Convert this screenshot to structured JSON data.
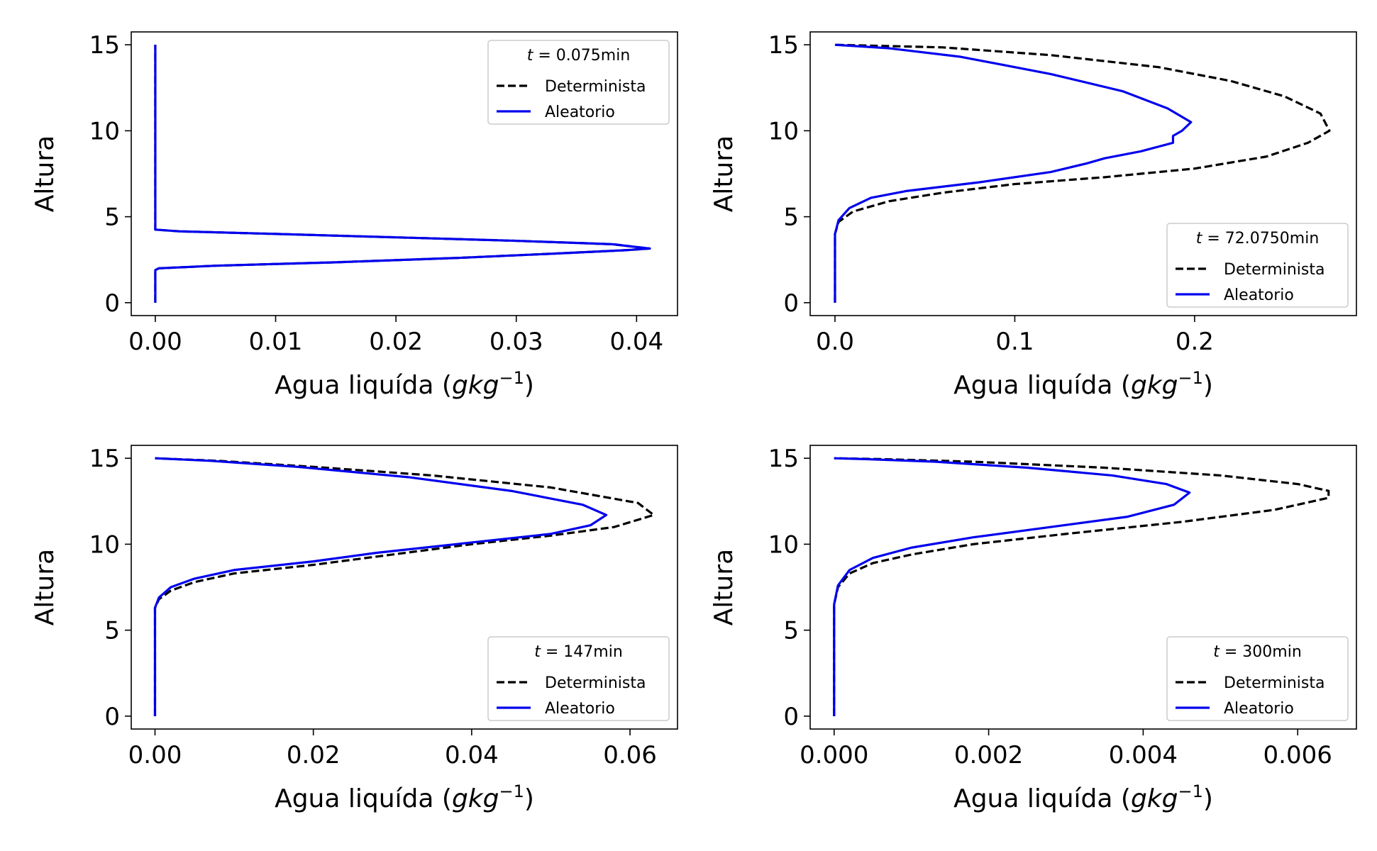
{
  "chart_data": [
    {
      "type": "line",
      "legend_title": "t = 0.075min",
      "legend_position": "upper right",
      "xlabel": "Agua liquída (gkg⁻¹)",
      "ylabel": "Altura",
      "xlim": [
        -0.002,
        0.0434
      ],
      "ylim": [
        -0.75,
        15.75
      ],
      "xticks": [
        0,
        0.01,
        0.02,
        0.03,
        0.04
      ],
      "xtick_labels": [
        "0.00",
        "0.01",
        "0.02",
        "0.03",
        "0.04"
      ],
      "yticks": [
        0,
        5,
        10,
        15
      ],
      "ytick_labels": [
        "0",
        "5",
        "10",
        "15"
      ],
      "series": [
        {
          "name": "Determinista",
          "style": "dashed",
          "color": "#000000",
          "points": [
            [
              0,
              0
            ],
            [
              0,
              1.9
            ],
            [
              0.0003,
              2.0
            ],
            [
              0.005,
              2.15
            ],
            [
              0.015,
              2.35
            ],
            [
              0.025,
              2.6
            ],
            [
              0.033,
              2.85
            ],
            [
              0.039,
              3.05
            ],
            [
              0.0411,
              3.15
            ],
            [
              0.038,
              3.4
            ],
            [
              0.03,
              3.6
            ],
            [
              0.02,
              3.8
            ],
            [
              0.01,
              4.0
            ],
            [
              0.002,
              4.15
            ],
            [
              0,
              4.25
            ],
            [
              0,
              15
            ]
          ]
        },
        {
          "name": "Aleatorio",
          "style": "solid",
          "color": "#0000ee",
          "points": [
            [
              0,
              0
            ],
            [
              0,
              1.9
            ],
            [
              0.0003,
              2.0
            ],
            [
              0.005,
              2.15
            ],
            [
              0.015,
              2.35
            ],
            [
              0.025,
              2.6
            ],
            [
              0.033,
              2.85
            ],
            [
              0.039,
              3.05
            ],
            [
              0.0411,
              3.15
            ],
            [
              0.038,
              3.4
            ],
            [
              0.03,
              3.6
            ],
            [
              0.02,
              3.8
            ],
            [
              0.01,
              4.0
            ],
            [
              0.002,
              4.15
            ],
            [
              0,
              4.25
            ],
            [
              0,
              15
            ]
          ]
        }
      ]
    },
    {
      "type": "line",
      "legend_title": "t = 72.0750min",
      "legend_position": "lower right",
      "xlabel": "Agua liquída (gkg⁻¹)",
      "ylabel": "Altura",
      "xlim": [
        -0.0138,
        0.29
      ],
      "ylim": [
        -0.75,
        15.75
      ],
      "xticks": [
        0,
        0.1,
        0.2
      ],
      "xtick_labels": [
        "0.0",
        "0.1",
        "0.2"
      ],
      "yticks": [
        0,
        5,
        10,
        15
      ],
      "ytick_labels": [
        "0",
        "5",
        "10",
        "15"
      ],
      "series": [
        {
          "name": "Determinista",
          "style": "dashed",
          "color": "#000000",
          "points": [
            [
              0,
              0
            ],
            [
              0,
              4
            ],
            [
              0.002,
              4.7
            ],
            [
              0.01,
              5.3
            ],
            [
              0.03,
              5.9
            ],
            [
              0.06,
              6.4
            ],
            [
              0.1,
              6.9
            ],
            [
              0.15,
              7.3
            ],
            [
              0.2,
              7.8
            ],
            [
              0.24,
              8.5
            ],
            [
              0.263,
              9.3
            ],
            [
              0.275,
              10.0
            ],
            [
              0.27,
              11.0
            ],
            [
              0.25,
              12.0
            ],
            [
              0.22,
              12.9
            ],
            [
              0.18,
              13.7
            ],
            [
              0.12,
              14.4
            ],
            [
              0.06,
              14.85
            ],
            [
              0,
              15
            ]
          ]
        },
        {
          "name": "Aleatorio",
          "style": "solid",
          "color": "#0000ee",
          "points": [
            [
              0,
              0
            ],
            [
              0,
              4
            ],
            [
              0.002,
              4.8
            ],
            [
              0.008,
              5.5
            ],
            [
              0.02,
              6.1
            ],
            [
              0.04,
              6.5
            ],
            [
              0.08,
              7.0
            ],
            [
              0.12,
              7.6
            ],
            [
              0.14,
              8.1
            ],
            [
              0.15,
              8.4
            ],
            [
              0.17,
              8.8
            ],
            [
              0.188,
              9.3
            ],
            [
              0.188,
              9.7
            ],
            [
              0.193,
              10.0
            ],
            [
              0.198,
              10.5
            ],
            [
              0.185,
              11.3
            ],
            [
              0.16,
              12.3
            ],
            [
              0.12,
              13.3
            ],
            [
              0.07,
              14.3
            ],
            [
              0.03,
              14.8
            ],
            [
              0,
              15
            ]
          ]
        }
      ]
    },
    {
      "type": "line",
      "legend_title": "t = 147min",
      "legend_position": "lower right",
      "xlabel": "Agua liquída (gkg⁻¹)",
      "ylabel": "Altura",
      "xlim": [
        -0.003,
        0.066
      ],
      "ylim": [
        -0.75,
        15.75
      ],
      "xticks": [
        0,
        0.02,
        0.04,
        0.06
      ],
      "xtick_labels": [
        "0.00",
        "0.02",
        "0.04",
        "0.06"
      ],
      "yticks": [
        0,
        5,
        10,
        15
      ],
      "ytick_labels": [
        "0",
        "5",
        "10",
        "15"
      ],
      "series": [
        {
          "name": "Determinista",
          "style": "dashed",
          "color": "#000000",
          "points": [
            [
              0,
              0
            ],
            [
              0,
              6.3
            ],
            [
              0.0005,
              6.8
            ],
            [
              0.002,
              7.3
            ],
            [
              0.005,
              7.8
            ],
            [
              0.01,
              8.3
            ],
            [
              0.02,
              8.8
            ],
            [
              0.03,
              9.4
            ],
            [
              0.04,
              10.0
            ],
            [
              0.05,
              10.5
            ],
            [
              0.058,
              11.0
            ],
            [
              0.063,
              11.7
            ],
            [
              0.061,
              12.4
            ],
            [
              0.05,
              13.3
            ],
            [
              0.035,
              14.0
            ],
            [
              0.02,
              14.5
            ],
            [
              0.008,
              14.85
            ],
            [
              0,
              15
            ]
          ]
        },
        {
          "name": "Aleatorio",
          "style": "solid",
          "color": "#0000ee",
          "points": [
            [
              0,
              0
            ],
            [
              0,
              6.3
            ],
            [
              0.0005,
              6.9
            ],
            [
              0.002,
              7.5
            ],
            [
              0.005,
              8.0
            ],
            [
              0.01,
              8.5
            ],
            [
              0.02,
              9.0
            ],
            [
              0.028,
              9.5
            ],
            [
              0.04,
              10.1
            ],
            [
              0.05,
              10.6
            ],
            [
              0.055,
              11.1
            ],
            [
              0.057,
              11.7
            ],
            [
              0.054,
              12.3
            ],
            [
              0.045,
              13.1
            ],
            [
              0.032,
              13.9
            ],
            [
              0.018,
              14.5
            ],
            [
              0.007,
              14.85
            ],
            [
              0,
              15
            ]
          ]
        }
      ]
    },
    {
      "type": "line",
      "legend_title": "t = 300min",
      "legend_position": "lower right",
      "xlabel": "Agua liquída (gkg⁻¹)",
      "ylabel": "Altura",
      "xlim": [
        -0.00031,
        0.00676
      ],
      "ylim": [
        -0.75,
        15.75
      ],
      "xticks": [
        0,
        0.002,
        0.004,
        0.006
      ],
      "xtick_labels": [
        "0.000",
        "0.002",
        "0.004",
        "0.006"
      ],
      "yticks": [
        0,
        5,
        10,
        15
      ],
      "ytick_labels": [
        "0",
        "5",
        "10",
        "15"
      ],
      "series": [
        {
          "name": "Determinista",
          "style": "dashed",
          "color": "#000000",
          "points": [
            [
              0,
              0
            ],
            [
              0,
              6.5
            ],
            [
              5e-05,
              7.5
            ],
            [
              0.0002,
              8.3
            ],
            [
              0.0005,
              8.9
            ],
            [
              0.001,
              9.4
            ],
            [
              0.0018,
              10.0
            ],
            [
              0.003,
              10.6
            ],
            [
              0.0045,
              11.3
            ],
            [
              0.0057,
              12.0
            ],
            [
              0.0064,
              12.7
            ],
            [
              0.0064,
              13.1
            ],
            [
              0.006,
              13.5
            ],
            [
              0.005,
              14.0
            ],
            [
              0.0035,
              14.45
            ],
            [
              0.0018,
              14.8
            ],
            [
              0.0006,
              14.95
            ],
            [
              0,
              15
            ]
          ]
        },
        {
          "name": "Aleatorio",
          "style": "solid",
          "color": "#0000ee",
          "points": [
            [
              0,
              0
            ],
            [
              0,
              6.5
            ],
            [
              5e-05,
              7.6
            ],
            [
              0.0002,
              8.5
            ],
            [
              0.0005,
              9.2
            ],
            [
              0.001,
              9.8
            ],
            [
              0.0018,
              10.4
            ],
            [
              0.0028,
              11.0
            ],
            [
              0.0038,
              11.6
            ],
            [
              0.0044,
              12.3
            ],
            [
              0.0046,
              13.0
            ],
            [
              0.0043,
              13.5
            ],
            [
              0.0036,
              14.0
            ],
            [
              0.0025,
              14.45
            ],
            [
              0.0013,
              14.8
            ],
            [
              0.0004,
              14.95
            ],
            [
              0,
              15
            ]
          ]
        }
      ]
    }
  ],
  "colors": {
    "determinista": "#000000",
    "aleatorio": "#0000ee"
  }
}
